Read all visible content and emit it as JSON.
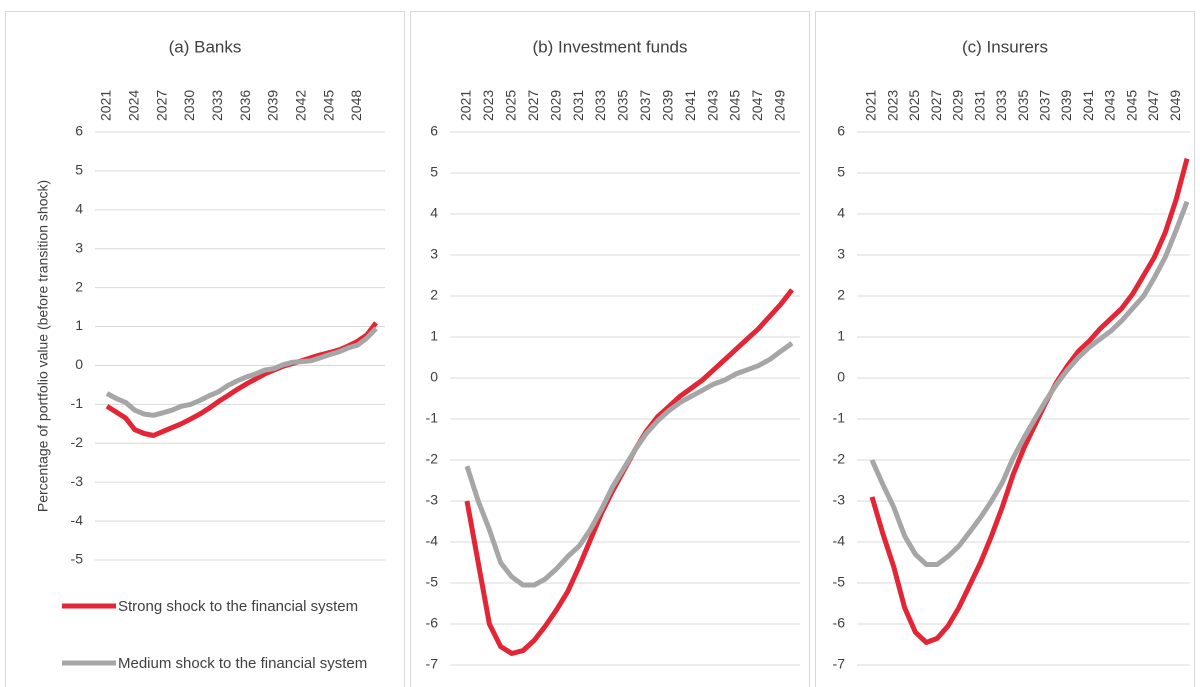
{
  "chart_data": [
    {
      "type": "line",
      "title": "(a) Banks",
      "y_label": "Percentage of portfolio value (before transition shock)",
      "x": [
        2021,
        2022,
        2023,
        2024,
        2025,
        2026,
        2027,
        2028,
        2029,
        2030,
        2031,
        2032,
        2033,
        2034,
        2035,
        2036,
        2037,
        2038,
        2039,
        2040,
        2041,
        2042,
        2043,
        2044,
        2045,
        2046,
        2047,
        2048,
        2049,
        2050
      ],
      "xlim": [
        2021,
        2050
      ],
      "xticks": [
        2021,
        2024,
        2027,
        2030,
        2033,
        2036,
        2039,
        2042,
        2045,
        2048
      ],
      "ylim": [
        -5,
        6
      ],
      "yticks": [
        6,
        5,
        4,
        3,
        2,
        1,
        0,
        -1,
        -2,
        -3,
        -4,
        -5
      ],
      "grid": true,
      "series": [
        {
          "name": "Strong shock to the financial system",
          "color": "#e32636",
          "values": [
            -1.05,
            -1.2,
            -1.35,
            -1.65,
            -1.75,
            -1.8,
            -1.7,
            -1.6,
            -1.5,
            -1.38,
            -1.25,
            -1.1,
            -0.93,
            -0.78,
            -0.62,
            -0.48,
            -0.35,
            -0.22,
            -0.12,
            -0.02,
            0.05,
            0.12,
            0.2,
            0.27,
            0.33,
            0.4,
            0.5,
            0.62,
            0.78,
            1.1
          ]
        },
        {
          "name": "Medium shock to the financial system",
          "color": "#a6a6a6",
          "values": [
            -0.72,
            -0.85,
            -0.95,
            -1.15,
            -1.25,
            -1.28,
            -1.22,
            -1.15,
            -1.05,
            -1.0,
            -0.9,
            -0.78,
            -0.68,
            -0.52,
            -0.4,
            -0.3,
            -0.22,
            -0.12,
            -0.08,
            0.02,
            0.08,
            0.1,
            0.12,
            0.2,
            0.28,
            0.35,
            0.45,
            0.52,
            0.7,
            0.95
          ]
        }
      ]
    },
    {
      "type": "line",
      "title": "(b) Investment funds",
      "x": [
        2021,
        2022,
        2023,
        2024,
        2025,
        2026,
        2027,
        2028,
        2029,
        2030,
        2031,
        2032,
        2033,
        2034,
        2035,
        2036,
        2037,
        2038,
        2039,
        2040,
        2041,
        2042,
        2043,
        2044,
        2045,
        2046,
        2047,
        2048,
        2049,
        2050
      ],
      "xlim": [
        2021,
        2050
      ],
      "xticks": [
        2021,
        2023,
        2025,
        2027,
        2029,
        2031,
        2033,
        2035,
        2037,
        2039,
        2041,
        2043,
        2045,
        2047,
        2049
      ],
      "ylim": [
        -7,
        6
      ],
      "yticks": [
        6,
        5,
        4,
        3,
        2,
        1,
        0,
        -1,
        -2,
        -3,
        -4,
        -5,
        -6,
        -7
      ],
      "grid": true,
      "series": [
        {
          "color": "#e32636",
          "values": [
            -3.0,
            -4.5,
            -6.0,
            -6.55,
            -6.72,
            -6.65,
            -6.4,
            -6.05,
            -5.65,
            -5.2,
            -4.6,
            -3.95,
            -3.3,
            -2.75,
            -2.25,
            -1.75,
            -1.3,
            -0.95,
            -0.7,
            -0.45,
            -0.25,
            -0.05,
            0.2,
            0.45,
            0.7,
            0.95,
            1.2,
            1.5,
            1.8,
            2.15
          ]
        },
        {
          "color": "#a6a6a6",
          "values": [
            -2.15,
            -3.0,
            -3.7,
            -4.5,
            -4.85,
            -5.05,
            -5.05,
            -4.9,
            -4.65,
            -4.35,
            -4.1,
            -3.7,
            -3.2,
            -2.65,
            -2.2,
            -1.75,
            -1.35,
            -1.05,
            -0.8,
            -0.6,
            -0.45,
            -0.3,
            -0.15,
            -0.05,
            0.1,
            0.2,
            0.3,
            0.45,
            0.65,
            0.85
          ]
        }
      ]
    },
    {
      "type": "line",
      "title": "(c) Insurers",
      "x": [
        2021,
        2022,
        2023,
        2024,
        2025,
        2026,
        2027,
        2028,
        2029,
        2030,
        2031,
        2032,
        2033,
        2034,
        2035,
        2036,
        2037,
        2038,
        2039,
        2040,
        2041,
        2042,
        2043,
        2044,
        2045,
        2046,
        2047,
        2048,
        2049,
        2050
      ],
      "xlim": [
        2021,
        2050
      ],
      "xticks": [
        2021,
        2023,
        2025,
        2027,
        2029,
        2031,
        2033,
        2035,
        2037,
        2039,
        2041,
        2043,
        2045,
        2047,
        2049
      ],
      "ylim": [
        -7,
        6
      ],
      "yticks": [
        6,
        5,
        4,
        3,
        2,
        1,
        0,
        -1,
        -2,
        -3,
        -4,
        -5,
        -6,
        -7
      ],
      "grid": true,
      "series": [
        {
          "color": "#e32636",
          "values": [
            -2.9,
            -3.8,
            -4.6,
            -5.6,
            -6.2,
            -6.45,
            -6.35,
            -6.05,
            -5.6,
            -5.05,
            -4.5,
            -3.85,
            -3.15,
            -2.35,
            -1.7,
            -1.15,
            -0.6,
            -0.1,
            0.3,
            0.65,
            0.9,
            1.2,
            1.45,
            1.7,
            2.05,
            2.5,
            2.95,
            3.55,
            4.35,
            5.35
          ]
        },
        {
          "color": "#a6a6a6",
          "values": [
            -2.0,
            -2.6,
            -3.15,
            -3.85,
            -4.3,
            -4.55,
            -4.55,
            -4.35,
            -4.1,
            -3.75,
            -3.4,
            -3.0,
            -2.55,
            -1.95,
            -1.45,
            -1.0,
            -0.55,
            -0.15,
            0.2,
            0.5,
            0.75,
            0.95,
            1.15,
            1.4,
            1.7,
            2.0,
            2.45,
            2.95,
            3.6,
            4.3
          ]
        }
      ]
    }
  ]
}
